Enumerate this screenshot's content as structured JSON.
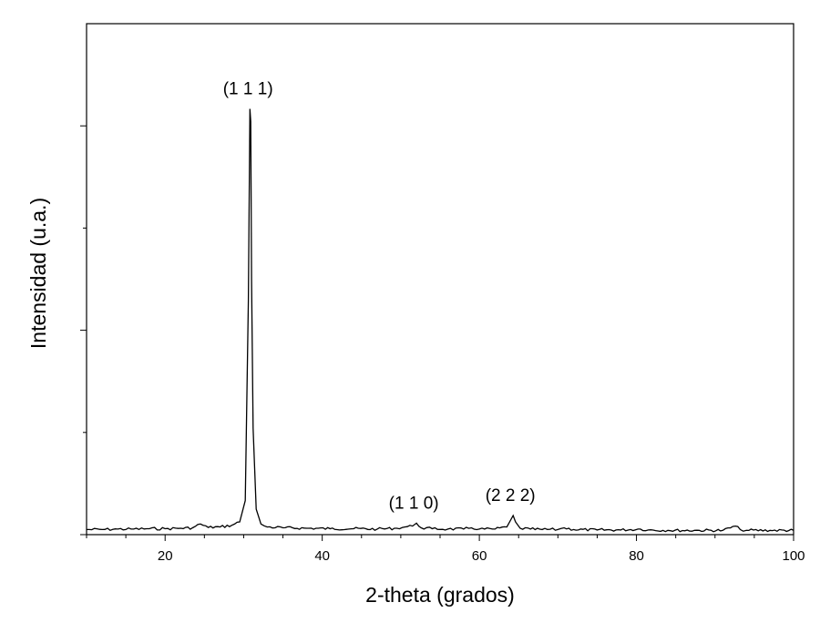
{
  "chart_data": {
    "type": "line",
    "xlabel": "2-theta (grados)",
    "ylabel": "Intensidad (u.a.)",
    "xlim": [
      10,
      100
    ],
    "ylim": [
      0,
      1.2
    ],
    "x_ticks": [
      20,
      40,
      60,
      80,
      100
    ],
    "x_tick_labels": [
      "20",
      "40",
      "60",
      "80",
      "100"
    ],
    "y_tick_labels_shown": false,
    "grid": false,
    "line_color": "#000000",
    "series": [
      {
        "x": [
          10,
          12,
          14,
          16,
          18,
          20,
          22,
          23.5,
          24.5,
          25.5,
          27,
          28.5,
          29.5,
          30.2,
          30.6,
          30.8,
          30.9,
          31.0,
          31.2,
          31.6,
          32.2,
          33,
          35,
          38,
          41,
          44,
          47,
          49.5,
          50.5,
          51.5,
          52.0,
          52.6,
          54,
          56,
          58,
          59,
          60,
          62,
          63.5,
          64.3,
          64.6,
          65.2,
          66.5,
          68,
          70,
          70.8,
          72,
          75,
          78,
          80.5,
          81.5,
          84,
          88,
          91,
          92.6,
          93.2,
          94,
          97,
          100
        ],
        "y": [
          0.012,
          0.012,
          0.013,
          0.013,
          0.014,
          0.014,
          0.015,
          0.016,
          0.025,
          0.017,
          0.018,
          0.022,
          0.03,
          0.08,
          0.55,
          1.0,
          0.97,
          0.6,
          0.25,
          0.06,
          0.025,
          0.018,
          0.016,
          0.015,
          0.014,
          0.014,
          0.013,
          0.015,
          0.018,
          0.02,
          0.027,
          0.016,
          0.014,
          0.013,
          0.013,
          0.016,
          0.013,
          0.013,
          0.018,
          0.045,
          0.03,
          0.015,
          0.013,
          0.012,
          0.012,
          0.016,
          0.012,
          0.011,
          0.011,
          0.013,
          0.011,
          0.01,
          0.01,
          0.01,
          0.02,
          0.012,
          0.01,
          0.01,
          0.01
        ]
      }
    ],
    "annotations": [
      {
        "text": "(1 1 1)",
        "x": 30.9,
        "y": 1.0
      },
      {
        "text": "(1 1 0)",
        "x": 52.0,
        "y": 0.027
      },
      {
        "text": "(2 2 2)",
        "x": 64.3,
        "y": 0.045
      }
    ]
  }
}
